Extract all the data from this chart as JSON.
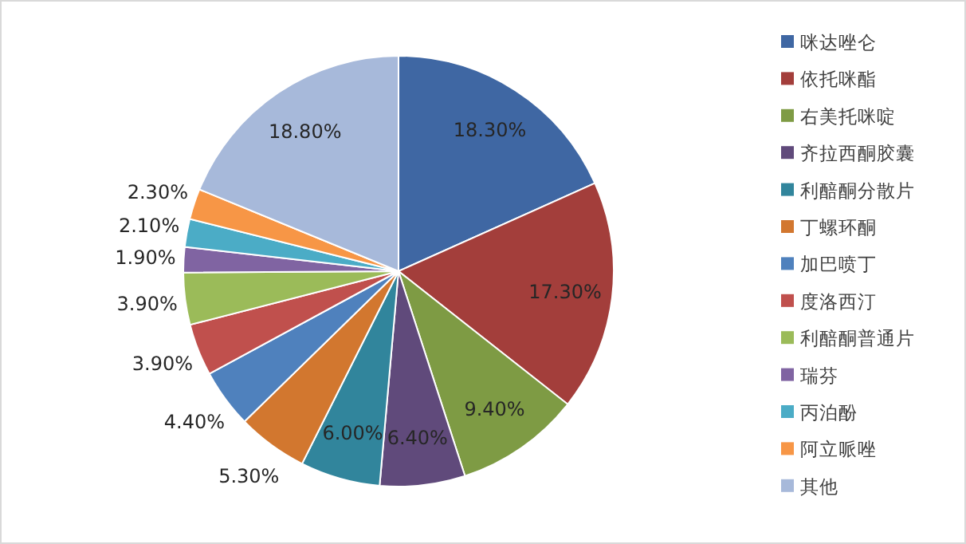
{
  "chart_data": {
    "type": "pie",
    "categories": [
      "咪达唑仑",
      "依托咪酯",
      "右美托咪啶",
      "齐拉西酮胶囊",
      "利醅酮分散片",
      "丁螺环酮",
      "加巴喷丁",
      "度洛西汀",
      "利醅酮普通片",
      "瑞芬",
      "丙泊酚",
      "阿立哌唑",
      "其他"
    ],
    "values": [
      18.3,
      17.3,
      9.4,
      6.4,
      6.0,
      5.3,
      4.4,
      3.9,
      3.9,
      1.9,
      2.1,
      2.3,
      18.8
    ],
    "colors": [
      "#3f67a3",
      "#a33e3b",
      "#7e9b44",
      "#604a7b",
      "#31859c",
      "#d2772f",
      "#4f81bd",
      "#c0504d",
      "#9bbb59",
      "#8064a2",
      "#4bacc6",
      "#f79646",
      "#a7b9da"
    ],
    "value_labels": [
      "18.30%",
      "17.30%",
      "9.40%",
      "6.40%",
      "6.00%",
      "5.30%",
      "4.40%",
      "3.90%",
      "3.90%",
      "1.90%",
      "2.10%",
      "2.30%",
      "18.80%"
    ],
    "legend": "right"
  }
}
